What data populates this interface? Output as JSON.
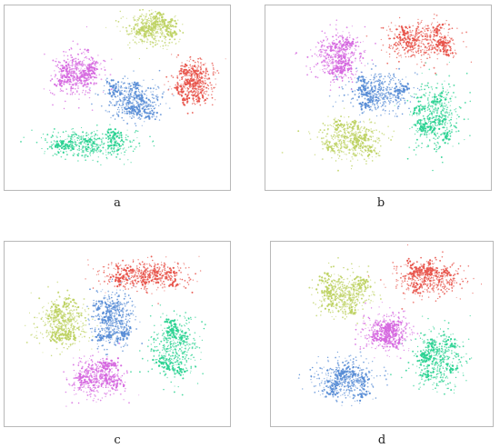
{
  "colors": {
    "red": "#e8564d",
    "olive": "#bfd366",
    "magenta": "#d66ae0",
    "blue": "#5a8ed6",
    "green": "#2fd394"
  },
  "chart_data": [
    {
      "type": "scatter",
      "caption": "a",
      "clusters": [
        {
          "color": "olive",
          "center": [
            0.38,
            0.86
          ],
          "spread": [
            0.32,
            0.26
          ]
        },
        {
          "color": "magenta",
          "center": [
            -0.42,
            0.28
          ],
          "spread": [
            0.3,
            0.34
          ]
        },
        {
          "color": "blue",
          "center": [
            0.16,
            -0.05
          ],
          "spread": [
            0.36,
            0.3
          ]
        },
        {
          "color": "red",
          "center": [
            0.82,
            0.18
          ],
          "spread": [
            0.26,
            0.34
          ]
        },
        {
          "color": "green",
          "center": [
            -0.28,
            -0.6
          ],
          "spread": [
            0.6,
            0.22
          ]
        }
      ]
    },
    {
      "type": "scatter",
      "caption": "b",
      "clusters": [
        {
          "color": "red",
          "center": [
            0.45,
            0.68
          ],
          "spread": [
            0.48,
            0.3
          ]
        },
        {
          "color": "magenta",
          "center": [
            -0.42,
            0.5
          ],
          "spread": [
            0.32,
            0.36
          ]
        },
        {
          "color": "blue",
          "center": [
            0.02,
            0.05
          ],
          "spread": [
            0.4,
            0.3
          ]
        },
        {
          "color": "olive",
          "center": [
            -0.3,
            -0.55
          ],
          "spread": [
            0.4,
            0.3
          ]
        },
        {
          "color": "green",
          "center": [
            0.6,
            -0.25
          ],
          "spread": [
            0.3,
            0.52
          ]
        }
      ]
    },
    {
      "type": "scatter",
      "caption": "c",
      "clusters": [
        {
          "color": "red",
          "center": [
            0.28,
            0.72
          ],
          "spread": [
            0.5,
            0.22
          ]
        },
        {
          "color": "olive",
          "center": [
            -0.58,
            0.12
          ],
          "spread": [
            0.3,
            0.38
          ]
        },
        {
          "color": "blue",
          "center": [
            -0.02,
            0.18
          ],
          "spread": [
            0.26,
            0.4
          ]
        },
        {
          "color": "magenta",
          "center": [
            -0.2,
            -0.58
          ],
          "spread": [
            0.32,
            0.3
          ]
        },
        {
          "color": "green",
          "center": [
            0.6,
            -0.18
          ],
          "spread": [
            0.3,
            0.5
          ]
        }
      ]
    },
    {
      "type": "scatter",
      "caption": "d",
      "clusters": [
        {
          "color": "red",
          "center": [
            0.5,
            0.68
          ],
          "spread": [
            0.45,
            0.26
          ]
        },
        {
          "color": "olive",
          "center": [
            -0.4,
            0.48
          ],
          "spread": [
            0.32,
            0.34
          ]
        },
        {
          "color": "magenta",
          "center": [
            0.05,
            0.0
          ],
          "spread": [
            0.3,
            0.3
          ]
        },
        {
          "color": "blue",
          "center": [
            -0.4,
            -0.6
          ],
          "spread": [
            0.38,
            0.3
          ]
        },
        {
          "color": "green",
          "center": [
            0.6,
            -0.32
          ],
          "spread": [
            0.3,
            0.42
          ]
        }
      ]
    }
  ]
}
